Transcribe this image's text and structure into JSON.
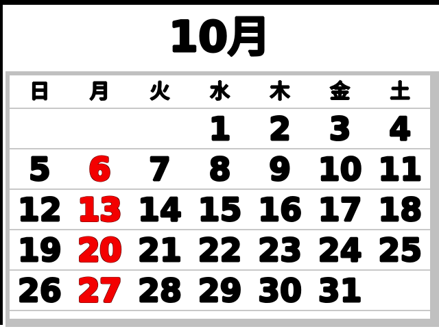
{
  "window": {
    "border_top_color": "#000000",
    "border_left_color": "#000000",
    "background": "#ffffff"
  },
  "calendar": {
    "title": "10月",
    "weekday_headers": [
      "日",
      "月",
      "火",
      "水",
      "木",
      "金",
      "土"
    ],
    "weeks": [
      [
        "",
        "",
        "",
        "1",
        "2",
        "3",
        "4"
      ],
      [
        "5",
        "6",
        "7",
        "8",
        "9",
        "10",
        "11"
      ],
      [
        "12",
        "13",
        "14",
        "15",
        "16",
        "17",
        "18"
      ],
      [
        "19",
        "20",
        "21",
        "22",
        "23",
        "24",
        "25"
      ],
      [
        "26",
        "27",
        "28",
        "29",
        "30",
        "31",
        ""
      ],
      [
        "",
        "",
        "",
        "",
        "",
        "",
        ""
      ]
    ],
    "red_dates": [
      "6",
      "13",
      "20",
      "27"
    ],
    "colors": {
      "date_default": "#000000",
      "date_holiday": "#f30000",
      "holiday_outline": "#6b0000",
      "frame": "#c0c0c0",
      "row_divider": "#c8c8c8"
    }
  }
}
